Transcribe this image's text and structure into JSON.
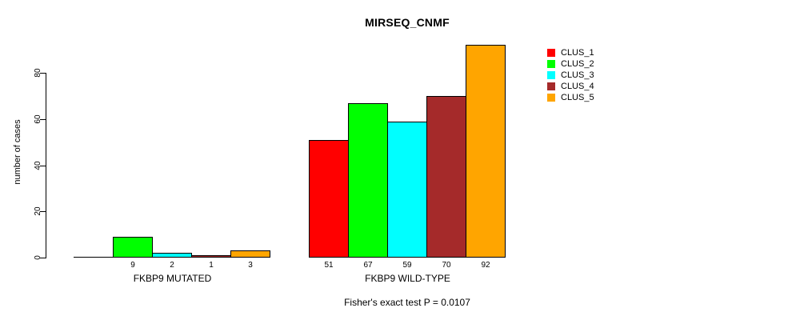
{
  "chart_data": {
    "type": "bar",
    "title": "MIRSEQ_CNMF",
    "ylabel": "number of cases",
    "xlabel": "",
    "yticks": [
      0,
      20,
      40,
      60,
      80
    ],
    "ylim": [
      0,
      92
    ],
    "grid": false,
    "legend_position": "top-right-outside",
    "legend": [
      {
        "name": "CLUS_1",
        "color": "#FF0000"
      },
      {
        "name": "CLUS_2",
        "color": "#00FF00"
      },
      {
        "name": "CLUS_3",
        "color": "#00FFFF"
      },
      {
        "name": "CLUS_4",
        "color": "#A52A2A"
      },
      {
        "name": "CLUS_5",
        "color": "#FFA500"
      }
    ],
    "groups": [
      {
        "label": "FKBP9 MUTATED",
        "values": [
          0,
          9,
          2,
          1,
          3
        ],
        "bar_labels": [
          "",
          "9",
          "2",
          "1",
          "3"
        ]
      },
      {
        "label": "FKBP9 WILD-TYPE",
        "values": [
          51,
          67,
          59,
          70,
          92
        ],
        "bar_labels": [
          "51",
          "67",
          "59",
          "70",
          "92"
        ]
      }
    ],
    "footnote": "Fisher's exact test P = 0.0107"
  }
}
